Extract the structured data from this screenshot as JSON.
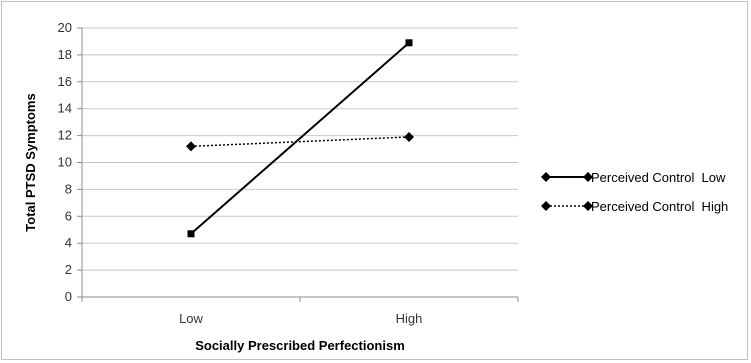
{
  "chart_data": {
    "type": "line",
    "title": "",
    "xlabel": "Socially Prescribed Perfectionism",
    "ylabel": "Total PTSD Symptoms",
    "categories": [
      "Low",
      "High"
    ],
    "ylim": [
      0,
      20
    ],
    "ytick_step": 2,
    "grid": true,
    "legend_position": "right",
    "series": [
      {
        "name": "Perceived Control  Low",
        "values": [
          4.7,
          18.9
        ],
        "line_style": "solid",
        "marker": "square",
        "color": "#000000"
      },
      {
        "name": "Perceived Control  High",
        "values": [
          11.2,
          11.9
        ],
        "line_style": "dotted",
        "marker": "diamond",
        "color": "#000000"
      }
    ]
  }
}
